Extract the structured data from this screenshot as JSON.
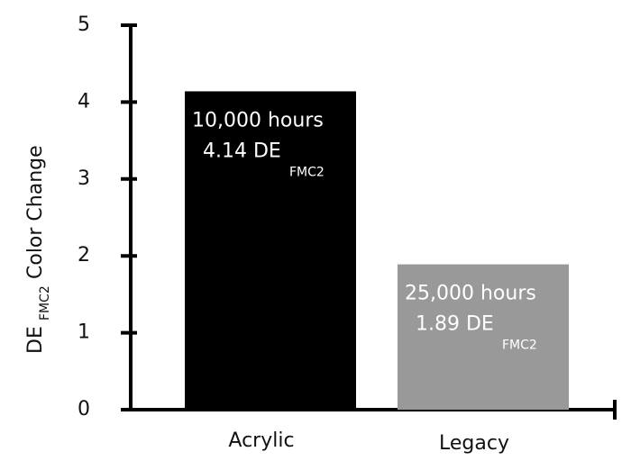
{
  "chart_data": {
    "type": "bar",
    "ylabel": {
      "main": "DE",
      "subscript": "FMC2",
      "rest": "Color Change"
    },
    "categories": [
      "Acrylic",
      "Legacy"
    ],
    "values": [
      4.14,
      1.89
    ],
    "value_labels": [
      "4.14 DE",
      "1.89 DE"
    ],
    "value_label_subscripts": [
      "FMC2",
      "FMC2"
    ],
    "bar_annotations": [
      "10,000 hours",
      "25,000 hours"
    ],
    "colors": [
      "#000000",
      "#999999"
    ],
    "ylim": [
      0,
      5
    ],
    "yticks": [
      0,
      1,
      2,
      3,
      4,
      5
    ],
    "grid": false
  }
}
